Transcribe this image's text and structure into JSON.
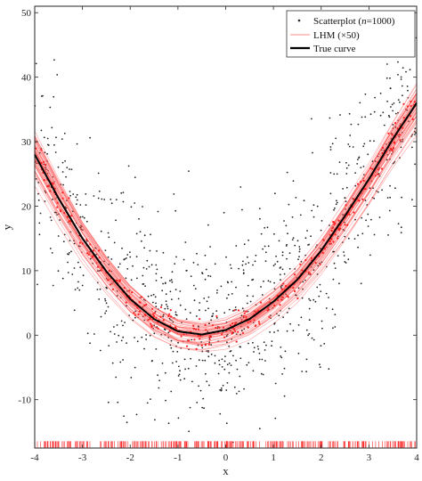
{
  "chart_data": {
    "type": "scatter",
    "xlabel": "x",
    "ylabel": "y",
    "xlim": [
      -4,
      4
    ],
    "ylim": [
      -17.5,
      51
    ],
    "grid": false,
    "legend_position": "top-right",
    "x_ticks": [
      -4,
      -3,
      -2,
      -1,
      0,
      1,
      2,
      3,
      4
    ],
    "x_tick_labels": [
      "-4",
      "-3",
      "-2",
      "-1",
      "0",
      "1",
      "2",
      "3",
      "4"
    ],
    "y_ticks": [
      -10,
      0,
      10,
      20,
      30,
      40,
      50
    ],
    "y_tick_labels": [
      "-10",
      "0",
      "10",
      "20",
      "30",
      "40",
      "50"
    ],
    "legend": {
      "scatter_label_prefix": "Scatterplot (",
      "scatter_label_n": "n",
      "scatter_label_suffix": "=1000)",
      "lhm_label": "LHM (×50)",
      "true_label": "True curve"
    },
    "series": [
      {
        "name": "Scatterplot (n=1000)",
        "kind": "scatter",
        "color": "#222222",
        "n": 1000,
        "noise_sd": 7.5
      },
      {
        "name": "LHM (×50)",
        "kind": "lines",
        "color": "#ff5a5a",
        "count": 50
      },
      {
        "name": "True curve",
        "kind": "line",
        "color": "#000000",
        "x": [
          -4,
          -3.5,
          -3,
          -2.5,
          -2,
          -1.5,
          -1,
          -0.5,
          0,
          0.5,
          1,
          1.5,
          2,
          2.5,
          3,
          3.5,
          4
        ],
        "y": [
          28,
          21.2,
          15,
          9.9,
          5.6,
          2.5,
          0.6,
          0.1,
          0.8,
          2.5,
          5.2,
          8.6,
          13.1,
          18.5,
          24.2,
          30.4,
          36
        ]
      }
    ],
    "rug": {
      "color": "#ff2a2a",
      "y": -17
    }
  }
}
